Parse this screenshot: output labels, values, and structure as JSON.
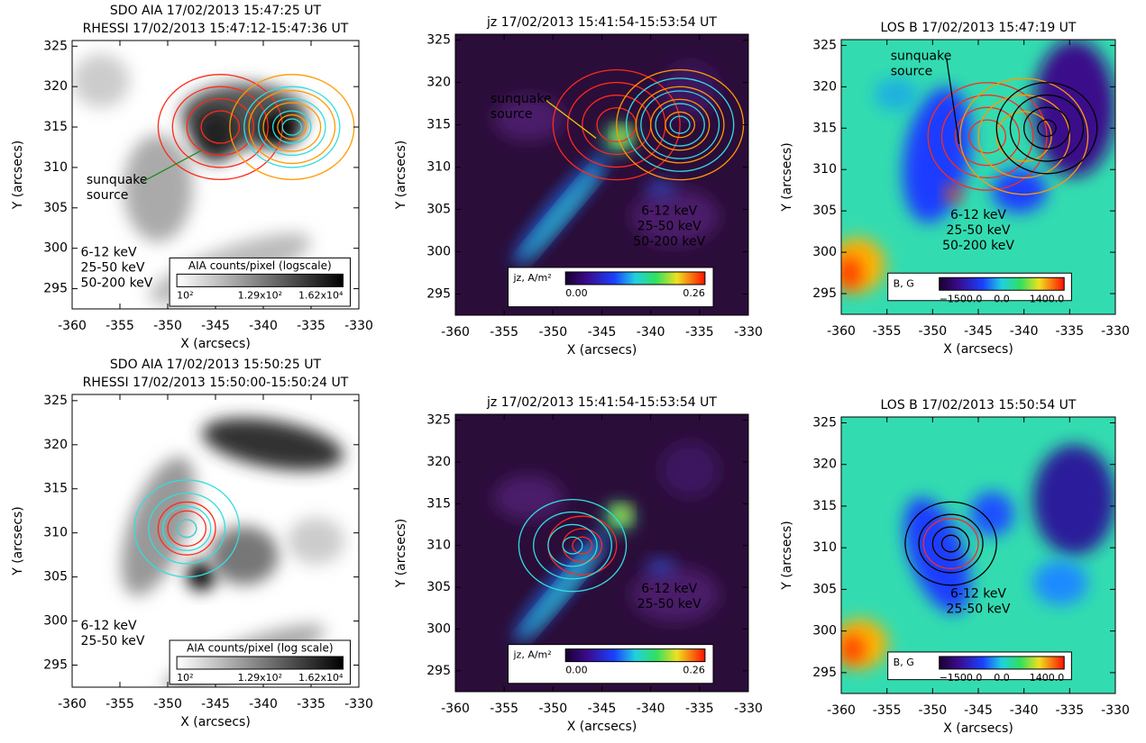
{
  "chart_data": [
    {
      "type": "image",
      "title": [
        "SDO AIA 17/02/2013 15:47:25 UT",
        "RHESSI 17/02/2013 15:47:12-15:47:36 UT"
      ],
      "xlabel": "X (arcsecs)",
      "ylabel": "Y (arcsecs)",
      "xlim": [
        -360,
        -330
      ],
      "ylim": [
        292.5,
        325.7
      ],
      "xticks": [
        -360,
        -355,
        -350,
        -345,
        -340,
        -335,
        -330
      ],
      "yticks": [
        295,
        300,
        305,
        310,
        315,
        320,
        325
      ],
      "legend": "lower left",
      "series": [
        {
          "name": "6-12 keV",
          "color": "#ff2a1a",
          "center": [
            -344.5,
            315
          ],
          "radii": [
            2,
            3.5,
            5,
            6.5
          ]
        },
        {
          "name": "25-50 keV",
          "color": "#ff9a00",
          "center": [
            -337,
            315
          ],
          "radii": [
            1.5,
            3,
            4.5,
            6.5
          ]
        },
        {
          "name": "50-200 keV",
          "color": "#33dddd",
          "center": [
            -337,
            315
          ],
          "radii": [
            1,
            2,
            3.5,
            5
          ]
        }
      ],
      "colorbar": {
        "label": "AIA counts/pixel (logscale)",
        "cmap": "gray",
        "ticks": [
          {
            "value": 100,
            "label": "10²"
          },
          {
            "value": 129,
            "label": "1.29x10²"
          },
          {
            "value": 16200,
            "label": "1.62x10⁴"
          }
        ]
      },
      "annotation": {
        "text": [
          "sunquake",
          "source"
        ],
        "color": "#1e8c1e"
      }
    },
    {
      "type": "image",
      "title": [
        "jz 17/02/2013 15:41:54-15:53:54 UT"
      ],
      "xlabel": "X (arcsecs)",
      "ylabel": "Y (arcsecs)",
      "xlim": [
        -360,
        -330
      ],
      "ylim": [
        292.5,
        325.7
      ],
      "xticks": [
        -360,
        -355,
        -350,
        -345,
        -340,
        -335,
        -330
      ],
      "yticks": [
        295,
        300,
        305,
        310,
        315,
        320,
        325
      ],
      "legend": "center right",
      "series": [
        {
          "name": "6-12 keV",
          "color": "#ff2a1a",
          "center": [
            -343.5,
            315
          ],
          "radii": [
            2,
            3.5,
            5,
            6.5
          ]
        },
        {
          "name": "25-50 keV",
          "color": "#ff9a00",
          "center": [
            -337,
            315
          ],
          "radii": [
            1.5,
            3,
            4.5,
            6.5
          ]
        },
        {
          "name": "50-200 keV",
          "color": "#33dddd",
          "center": [
            -337,
            315
          ],
          "radii": [
            1,
            2.5,
            4,
            5.5
          ]
        }
      ],
      "colorbar": {
        "label": "jz, A/m²",
        "cmap": "rainbow",
        "ticks": [
          {
            "value": 0,
            "label": "0.00"
          },
          {
            "value": 0.26,
            "label": "0.26"
          }
        ]
      },
      "annotation": {
        "text": [
          "sunquake",
          "source"
        ],
        "color": "#e8c800"
      }
    },
    {
      "type": "image",
      "title": [
        "LOS B 17/02/2013 15:47:19 UT"
      ],
      "xlabel": "X (arcsecs)",
      "ylabel": "Y (arcsecs)",
      "xlim": [
        -360,
        -330
      ],
      "ylim": [
        292.5,
        325.7
      ],
      "xticks": [
        -360,
        -355,
        -350,
        -345,
        -340,
        -335,
        -330
      ],
      "yticks": [
        295,
        300,
        305,
        310,
        315,
        320,
        325
      ],
      "legend": "lower center",
      "series": [
        {
          "name": "6-12 keV",
          "color": "#ff2a1a",
          "center": [
            -344,
            314
          ],
          "radii": [
            2,
            3.5,
            5,
            6.5
          ]
        },
        {
          "name": "25-50 keV",
          "color": "#ff9a00",
          "center": [
            -340,
            314
          ],
          "radii": [
            3,
            5,
            7
          ]
        },
        {
          "name": "50-200 keV",
          "color": "#000000",
          "center": [
            -337.5,
            315
          ],
          "radii": [
            1,
            2.5,
            4,
            5.5
          ]
        }
      ],
      "colorbar": {
        "label": "B, G",
        "cmap": "rainbow",
        "ticks": [
          {
            "value": -1500,
            "label": "−1500.0"
          },
          {
            "value": 0,
            "label": "0.0"
          },
          {
            "value": 1400,
            "label": "1400.0"
          }
        ]
      },
      "annotation": {
        "text": [
          "sunquake",
          "source"
        ],
        "color": "#000000"
      }
    },
    {
      "type": "image",
      "title": [
        "SDO AIA 17/02/2013 15:50:25 UT",
        "RHESSI 17/02/2013 15:50:00-15:50:24 UT"
      ],
      "xlabel": "X (arcsecs)",
      "ylabel": "Y (arcsecs)",
      "xlim": [
        -360,
        -330
      ],
      "ylim": [
        292.5,
        325.7
      ],
      "xticks": [
        -360,
        -355,
        -350,
        -345,
        -340,
        -335,
        -330
      ],
      "yticks": [
        295,
        300,
        305,
        310,
        315,
        320,
        325
      ],
      "legend": "lower left",
      "series": [
        {
          "name": "6-12 keV",
          "color": "#ff2a1a",
          "center": [
            -348,
            310.5
          ],
          "radii": [
            1,
            2,
            3
          ]
        },
        {
          "name": "25-50 keV",
          "color": "#33dddd",
          "center": [
            -348,
            310.5
          ],
          "radii": [
            1,
            2.5,
            4,
            5.5
          ]
        }
      ],
      "colorbar": {
        "label": "AIA counts/pixel (log scale)",
        "cmap": "gray",
        "ticks": [
          {
            "value": 100,
            "label": "10²"
          },
          {
            "value": 129,
            "label": "1.29x10²"
          },
          {
            "value": 16200,
            "label": "1.62x10⁴"
          }
        ]
      }
    },
    {
      "type": "image",
      "title": [
        "jz 17/02/2013 15:41:54-15:53:54 UT"
      ],
      "xlabel": "X (arcsecs)",
      "ylabel": "Y (arcsecs)",
      "xlim": [
        -360,
        -330
      ],
      "ylim": [
        292.5,
        325.7
      ],
      "xticks": [
        -360,
        -355,
        -350,
        -345,
        -340,
        -335,
        -330
      ],
      "yticks": [
        295,
        300,
        305,
        310,
        315,
        320,
        325
      ],
      "legend": "center right",
      "series": [
        {
          "name": "6-12 keV",
          "color": "#ff2a1a",
          "center": [
            -347,
            310
          ],
          "radii": [
            1,
            2,
            3.5
          ]
        },
        {
          "name": "25-50 keV",
          "color": "#33dddd",
          "center": [
            -348,
            310
          ],
          "radii": [
            1,
            2.5,
            4,
            5.5
          ]
        }
      ],
      "colorbar": {
        "label": "jz, A/m²",
        "cmap": "rainbow",
        "ticks": [
          {
            "value": 0,
            "label": "0.00"
          },
          {
            "value": 0.26,
            "label": "0.26"
          }
        ]
      }
    },
    {
      "type": "image",
      "title": [
        "LOS B 17/02/2013 15:50:54 UT"
      ],
      "xlabel": "X (arcsecs)",
      "ylabel": "Y (arcsecs)",
      "xlim": [
        -360,
        -330
      ],
      "ylim": [
        292.5,
        325.7
      ],
      "xticks": [
        -360,
        -355,
        -350,
        -345,
        -340,
        -335,
        -330
      ],
      "yticks": [
        295,
        300,
        305,
        310,
        315,
        320,
        325
      ],
      "legend": "lower center",
      "series": [
        {
          "name": "6-12 keV",
          "color": "#ff2a1a",
          "center": [
            -348,
            310.5
          ],
          "radii": [
            1,
            2,
            3
          ]
        },
        {
          "name": "25-50 keV",
          "color": "#000000",
          "center": [
            -348,
            310.5
          ],
          "radii": [
            1,
            2,
            3.5,
            5
          ]
        }
      ],
      "colorbar": {
        "label": "B, G",
        "cmap": "rainbow",
        "ticks": [
          {
            "value": -1500,
            "label": "−1500.0"
          },
          {
            "value": 0,
            "label": "0.0"
          },
          {
            "value": 1400,
            "label": "1400.0"
          }
        ]
      }
    }
  ]
}
